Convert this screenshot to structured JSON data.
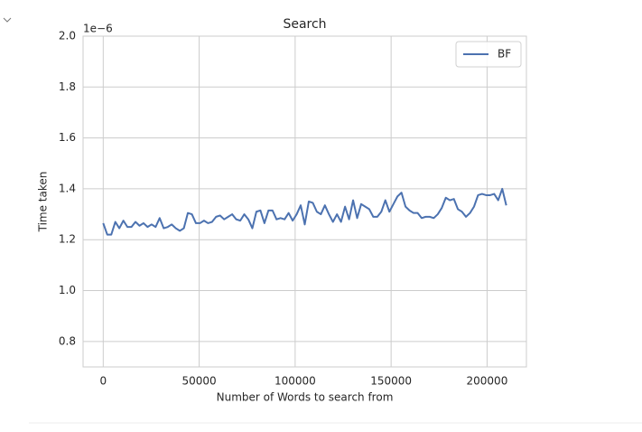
{
  "chart_data": {
    "type": "line",
    "title": "Search",
    "xlabel": "Number of Words to search from",
    "ylabel": "Time taken",
    "offset_label": "1e−6",
    "x": [
      0,
      2100,
      4200,
      6300,
      8400,
      10500,
      12600,
      14700,
      16800,
      18900,
      21000,
      23100,
      25200,
      27300,
      29400,
      31500,
      33600,
      35700,
      37800,
      39900,
      42000,
      44100,
      46200,
      48300,
      50400,
      52500,
      54600,
      56700,
      58800,
      60900,
      63000,
      65100,
      67200,
      69300,
      71400,
      73500,
      75600,
      77700,
      79800,
      81900,
      84000,
      86100,
      88200,
      90300,
      92400,
      94500,
      96600,
      98700,
      100800,
      102900,
      105000,
      107100,
      109200,
      111300,
      113400,
      115500,
      117600,
      119700,
      121800,
      123900,
      126000,
      128100,
      130200,
      132300,
      134400,
      136500,
      138600,
      140700,
      142800,
      144900,
      147000,
      149100,
      151200,
      153300,
      155400,
      157500,
      159600,
      161700,
      163800,
      165900,
      168000,
      170100,
      172200,
      174300,
      176400,
      178500,
      180600,
      182700,
      184800,
      186900,
      189000,
      191100,
      193200,
      195300,
      197400,
      199500,
      201600,
      203700,
      205800,
      207900,
      210000
    ],
    "series": [
      {
        "name": "BF",
        "color": "#4c72b0",
        "values": [
          1.265,
          1.22,
          1.22,
          1.27,
          1.245,
          1.275,
          1.25,
          1.25,
          1.27,
          1.255,
          1.265,
          1.25,
          1.26,
          1.25,
          1.285,
          1.245,
          1.25,
          1.26,
          1.245,
          1.235,
          1.245,
          1.305,
          1.3,
          1.265,
          1.265,
          1.275,
          1.265,
          1.27,
          1.29,
          1.295,
          1.28,
          1.29,
          1.3,
          1.28,
          1.275,
          1.3,
          1.28,
          1.245,
          1.31,
          1.315,
          1.265,
          1.315,
          1.315,
          1.28,
          1.285,
          1.28,
          1.305,
          1.275,
          1.3,
          1.335,
          1.26,
          1.35,
          1.345,
          1.31,
          1.3,
          1.335,
          1.3,
          1.27,
          1.3,
          1.27,
          1.33,
          1.28,
          1.355,
          1.285,
          1.34,
          1.33,
          1.32,
          1.29,
          1.29,
          1.31,
          1.355,
          1.31,
          1.34,
          1.37,
          1.385,
          1.33,
          1.315,
          1.305,
          1.305,
          1.285,
          1.29,
          1.29,
          1.285,
          1.3,
          1.325,
          1.365,
          1.355,
          1.36,
          1.32,
          1.31,
          1.29,
          1.305,
          1.33,
          1.375,
          1.38,
          1.375,
          1.375,
          1.38,
          1.355,
          1.4,
          1.335
        ]
      }
    ],
    "xlim": [
      -10500,
      220500
    ],
    "xticks": [
      0,
      50000,
      100000,
      150000,
      200000
    ],
    "ylim": [
      0.7,
      2.0
    ],
    "yticks": [
      0.8,
      {
        "value": 1.0,
        "label": "1.0"
      },
      1.2,
      1.4,
      1.6,
      1.8,
      {
        "value": 2.0,
        "label": "2.0"
      }
    ],
    "grid": true,
    "legend": "upper right"
  }
}
